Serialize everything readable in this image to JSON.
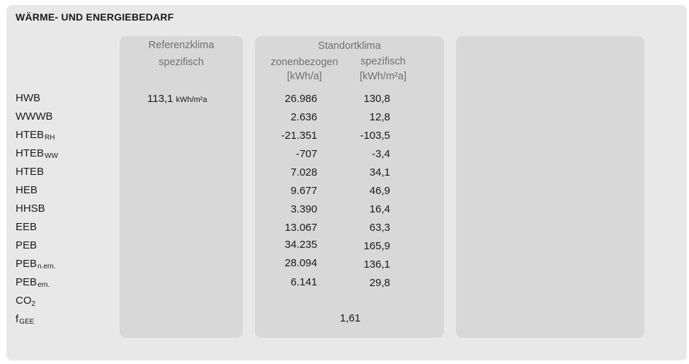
{
  "title": "WÄRME- UND ENERGIEBEDARF",
  "headers": {
    "ref_line1": "Referenzklima",
    "ref_line2": "spezifisch",
    "std_title": "Standortklima",
    "std_zone": "zonenbezogen",
    "std_zone_unit": "[kWh/a]",
    "std_spec": "spezifisch",
    "std_spec_unit": "[kWh/m²a]"
  },
  "rows": [
    {
      "main": "HWB",
      "sub": "",
      "ref": "113,1",
      "ref_unit": "kWh/m²a",
      "zone": "26.986",
      "spec": "130,8"
    },
    {
      "main": "WWWB",
      "sub": "",
      "zone": "2.636",
      "spec": "12,8"
    },
    {
      "main": "HTEB",
      "sub": "RH",
      "zone": "-21.351",
      "spec": "-103,5"
    },
    {
      "main": "HTEB",
      "sub": "WW",
      "zone": "-707",
      "spec": "-3,4"
    },
    {
      "main": "HTEB",
      "sub": "",
      "zone": "7.028",
      "spec": "34,1"
    },
    {
      "main": "HEB",
      "sub": "",
      "zone": "9.677",
      "spec": "46,9"
    },
    {
      "main": "HHSB",
      "sub": "",
      "zone": "3.390",
      "spec": "16,4"
    },
    {
      "main": "EEB",
      "sub": "",
      "zone": "13.067",
      "spec": "63,3"
    },
    {
      "main": "PEB",
      "sub": "",
      "zone": "34.235",
      "spec": "165,9"
    },
    {
      "main": "PEB",
      "sub": "n.ern.",
      "zone": "28.094",
      "spec": "136,1"
    },
    {
      "main": "PEB",
      "sub": "ern.",
      "zone": "6.141",
      "spec": "29,8"
    },
    {
      "main": "CO",
      "sub": "2",
      "zone": "",
      "spec": ""
    },
    {
      "main": "f",
      "sub": "GEE",
      "combined": "1,61"
    }
  ]
}
